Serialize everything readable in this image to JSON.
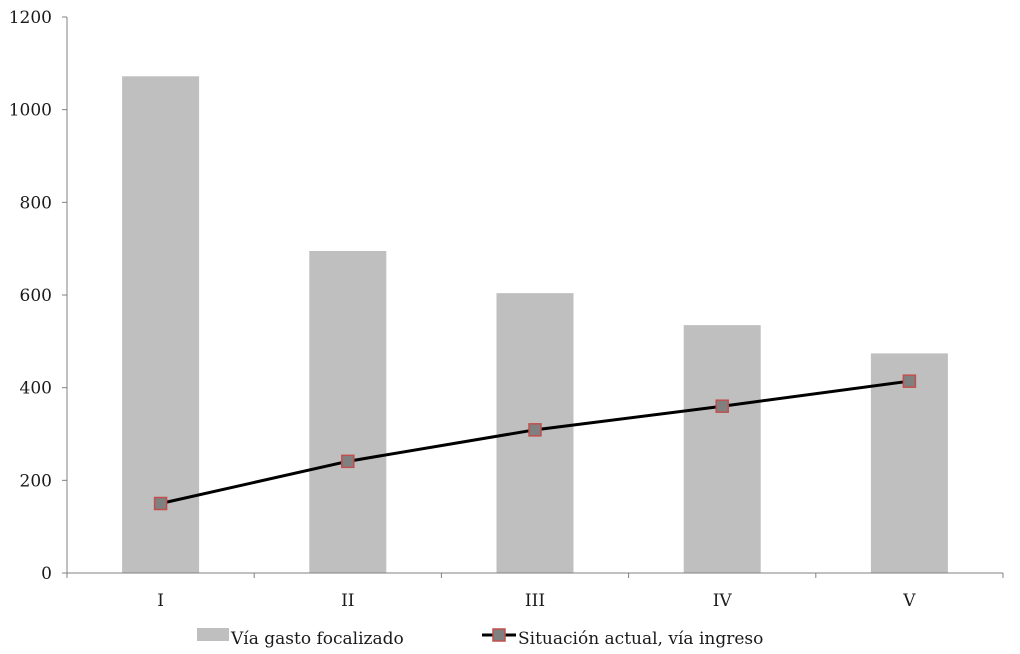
{
  "chart_data": {
    "type": "bar",
    "categories": [
      "I",
      "II",
      "III",
      "IV",
      "V"
    ],
    "ylim": [
      0,
      1200
    ],
    "yticks": [
      0,
      200,
      400,
      600,
      800,
      1000,
      1200
    ],
    "grid": false,
    "legend_position": "bottom-center",
    "title": "",
    "xlabel": "",
    "ylabel": "",
    "series": [
      {
        "name": "Vía gasto focalizado",
        "type": "bar",
        "color": "#bfbfbf",
        "values": [
          1072,
          695,
          604,
          535,
          474
        ]
      },
      {
        "name": "Situación actual, vía ingreso",
        "type": "line",
        "color": "#000000",
        "marker_fill": "#808080",
        "marker_stroke": "#c0504d",
        "values": [
          150,
          241,
          309,
          360,
          414
        ]
      }
    ]
  }
}
